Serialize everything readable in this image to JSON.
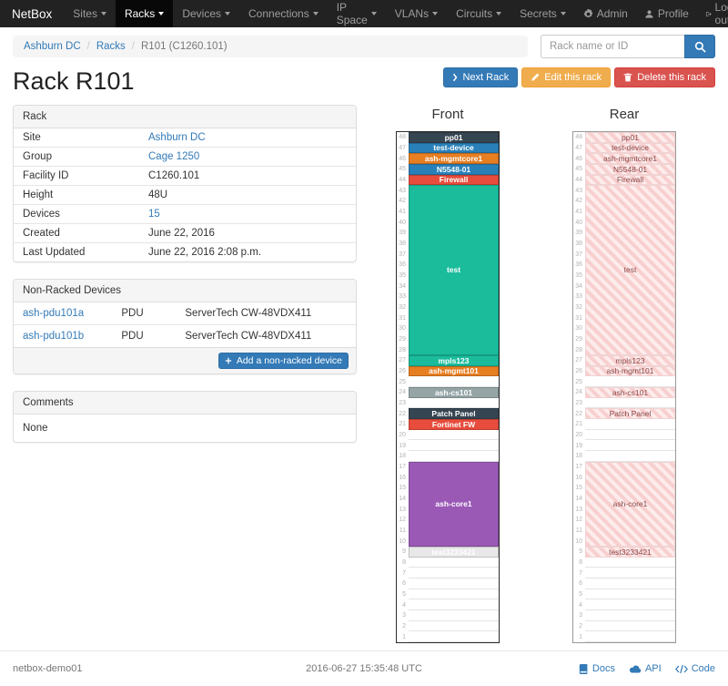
{
  "navbar": {
    "brand": "NetBox",
    "menu": [
      {
        "label": "Sites",
        "active": false
      },
      {
        "label": "Racks",
        "active": true
      },
      {
        "label": "Devices",
        "active": false
      },
      {
        "label": "Connections",
        "active": false
      },
      {
        "label": "IP Space",
        "active": false
      },
      {
        "label": "VLANs",
        "active": false
      },
      {
        "label": "Circuits",
        "active": false
      },
      {
        "label": "Secrets",
        "active": false
      }
    ],
    "admin": "Admin",
    "profile": "Profile",
    "logout": "Log out"
  },
  "breadcrumb": {
    "items": [
      {
        "label": "Ashburn DC",
        "link": true
      },
      {
        "label": "Racks",
        "link": true
      },
      {
        "label": "R101 (C1260.101)",
        "link": false
      }
    ]
  },
  "search": {
    "placeholder": "Rack name or ID"
  },
  "actions": {
    "next": "Next Rack",
    "edit": "Edit this rack",
    "delete": "Delete this rack"
  },
  "page_title": "Rack R101",
  "rack_panel": {
    "title": "Rack",
    "rows": [
      {
        "label": "Site",
        "value": "Ashburn DC",
        "link": true
      },
      {
        "label": "Group",
        "value": "Cage 1250",
        "link": true
      },
      {
        "label": "Facility ID",
        "value": "C1260.101",
        "link": false
      },
      {
        "label": "Height",
        "value": "48U",
        "link": false
      },
      {
        "label": "Devices",
        "value": "15",
        "link": true
      },
      {
        "label": "Created",
        "value": "June 22, 2016",
        "link": false
      },
      {
        "label": "Last Updated",
        "value": "June 22, 2016 2:08 p.m.",
        "link": false
      }
    ]
  },
  "nonracked_panel": {
    "title": "Non-Racked Devices",
    "rows": [
      {
        "name": "ash-pdu101a",
        "role": "PDU",
        "model": "ServerTech CW-48VDX411"
      },
      {
        "name": "ash-pdu101b",
        "role": "PDU",
        "model": "ServerTech CW-48VDX411"
      }
    ],
    "add_button": "Add a non-racked device"
  },
  "comments_panel": {
    "title": "Comments",
    "body": "None"
  },
  "elevations": {
    "front_title": "Front",
    "rear_title": "Rear",
    "units": 48,
    "devices": [
      {
        "name": "pp01",
        "top_u": 48,
        "u_height": 1,
        "color": "#364552",
        "rear": true
      },
      {
        "name": "test-device",
        "top_u": 47,
        "u_height": 1,
        "color": "#2980b9",
        "rear": true
      },
      {
        "name": "ash-mgmtcore1",
        "top_u": 46,
        "u_height": 1,
        "color": "#e67e22",
        "rear": true
      },
      {
        "name": "N5548-01",
        "top_u": 45,
        "u_height": 1,
        "color": "#2980b9",
        "rear": true
      },
      {
        "name": "Firewall",
        "top_u": 44,
        "u_height": 1,
        "color": "#e74c3c",
        "rear": true
      },
      {
        "name": "test",
        "top_u": 43,
        "u_height": 16,
        "color": "#1abc9c",
        "rear": true
      },
      {
        "name": "mpls123",
        "top_u": 27,
        "u_height": 1,
        "color": "#1abc9c",
        "rear": true
      },
      {
        "name": "ash-mgmt101",
        "top_u": 26,
        "u_height": 1,
        "color": "#e67e22",
        "rear": true
      },
      {
        "name": "ash-cs101",
        "top_u": 24,
        "u_height": 1,
        "color": "#95a5a6",
        "rear": true
      },
      {
        "name": "Patch Panel",
        "top_u": 22,
        "u_height": 1,
        "color": "#364552",
        "rear": true
      },
      {
        "name": "Fortinet FW",
        "top_u": 21,
        "u_height": 1,
        "color": "#e74c3c",
        "rear": false
      },
      {
        "name": "ash-core1",
        "top_u": 17,
        "u_height": 8,
        "color": "#9b59b6",
        "rear": true
      },
      {
        "name": "test3233421",
        "top_u": 9,
        "u_height": 1,
        "color": "#e8e8e8",
        "text_color": "#ffffff",
        "rear": true
      }
    ],
    "rear_stripe_colors": [
      "#f8cfcf",
      "#fdecec"
    ],
    "rear_text_color": "#8b4a4a"
  },
  "colors": {
    "navbar_bg": "#222222",
    "navbar_active_bg": "#080808",
    "accent": "#337ab7",
    "warning": "#f0ad4e",
    "danger": "#d9534f"
  },
  "footer": {
    "hostname": "netbox-demo01",
    "timestamp": "2016-06-27 15:35:48 UTC",
    "docs": "Docs",
    "api": "API",
    "code": "Code"
  }
}
